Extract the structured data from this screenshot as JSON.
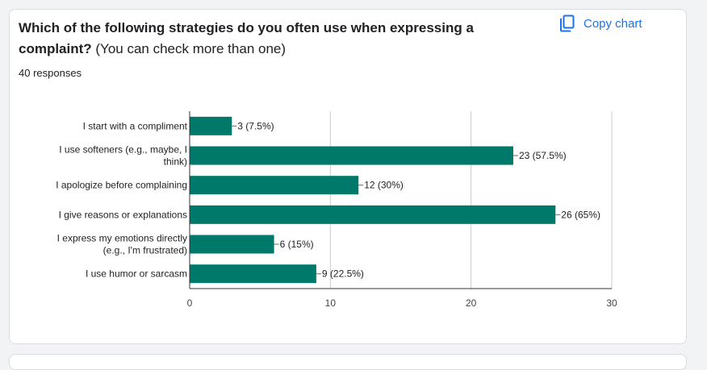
{
  "card": {
    "title_bold": "Which of the following strategies do you often use when expressing a complaint?",
    "title_normal": " (You can check more than one)",
    "responses": "40 responses",
    "copy_label": "Copy chart"
  },
  "colors": {
    "bar": "#00796b",
    "accent": "#1a73e8"
  },
  "icons": {
    "copy": "copy-icon"
  },
  "chart_data": {
    "type": "bar",
    "orientation": "horizontal",
    "categories": [
      [
        "I start with a compliment"
      ],
      [
        "I use softeners (e.g., maybe, I",
        "think)"
      ],
      [
        "I apologize before complaining"
      ],
      [
        "I give reasons or explanations"
      ],
      [
        "I express my emotions directly",
        "(e.g., I'm frustrated)"
      ],
      [
        "I use humor or sarcasm"
      ]
    ],
    "values": [
      3,
      23,
      12,
      26,
      6,
      9
    ],
    "value_labels": [
      "3 (7.5%)",
      "23 (57.5%)",
      "12 (30%)",
      "26 (65%)",
      "6 (15%)",
      "9 (22.5%)"
    ],
    "xlim": [
      0,
      30
    ],
    "xticks": [
      0,
      10,
      20,
      30
    ],
    "grid": true
  }
}
